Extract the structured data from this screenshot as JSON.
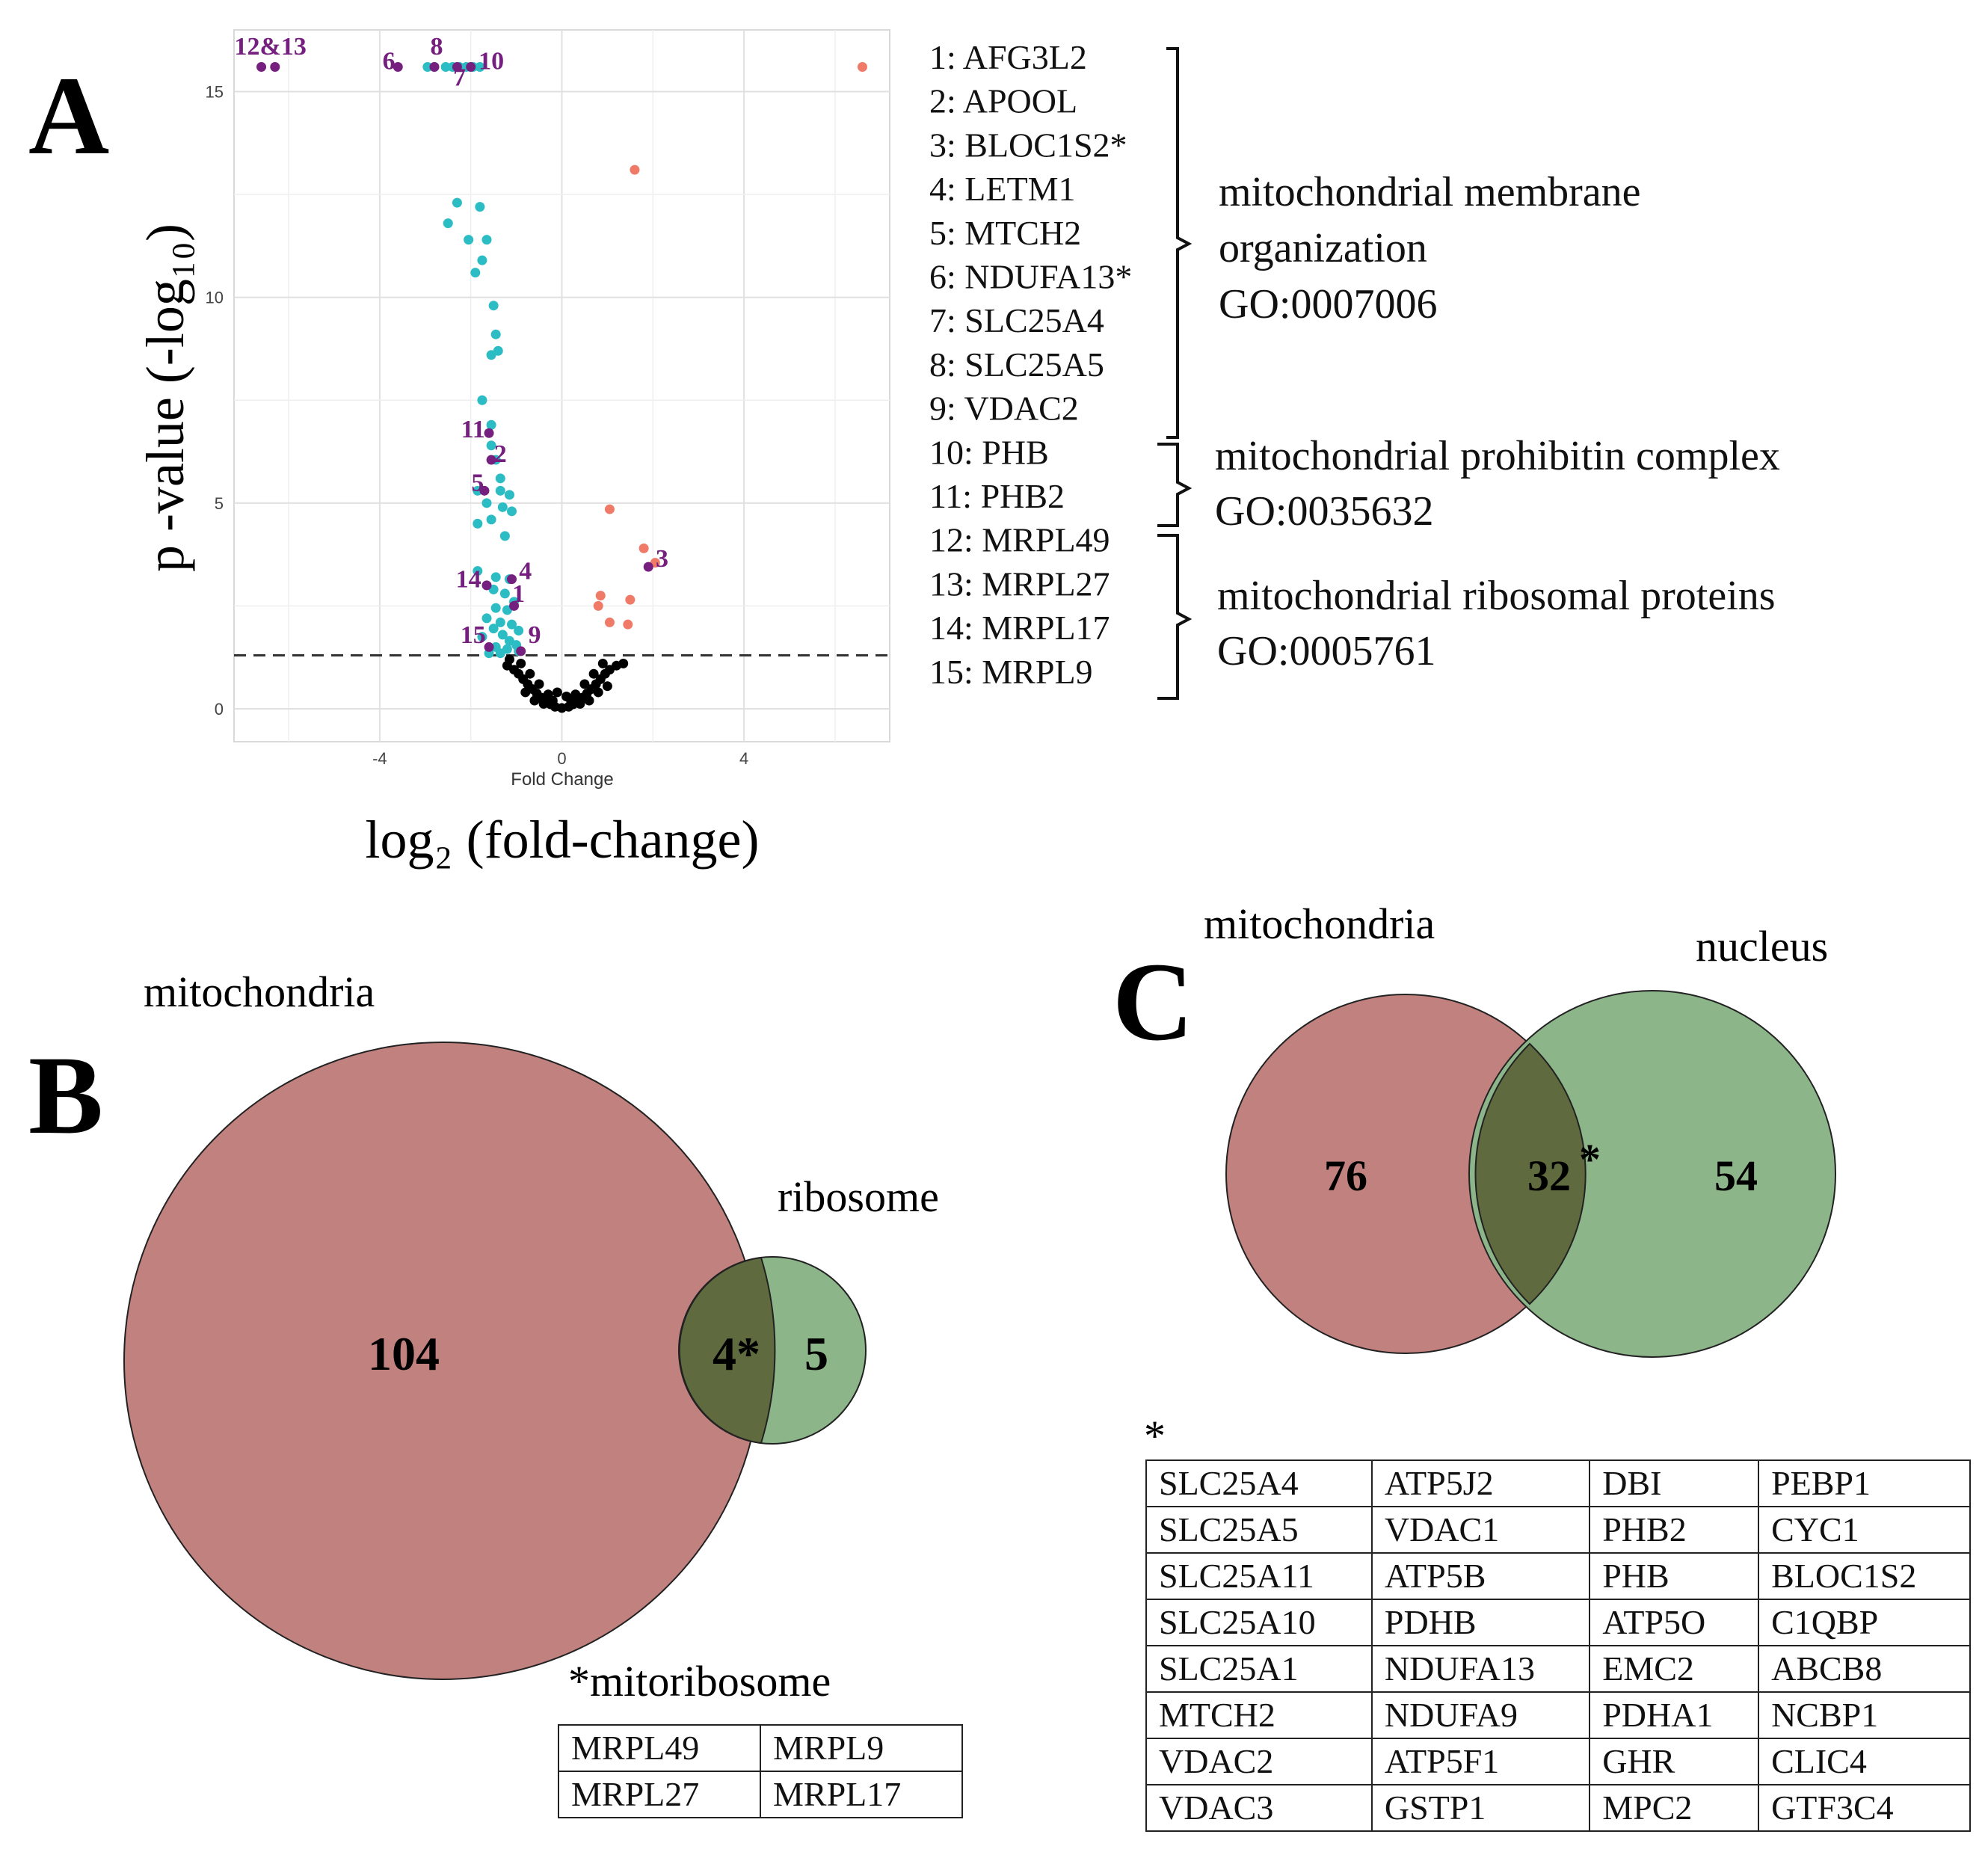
{
  "colors": {
    "up": "#f07a68",
    "down": "#2bbcc4",
    "ns": "#000000",
    "highlight": "#75207f",
    "venn_mito": "#c0817f",
    "venn_other": "#8db58a",
    "venn_overlap": "#5f6a3e"
  },
  "panelA": {
    "letter": "A",
    "chart_data": {
      "type": "scatter",
      "title": "",
      "xlabel_small": "Fold  Change",
      "xlabel": "log₂ (fold-change)",
      "ylabel": "p -value  (-log₁₀)",
      "xlim": [
        -7.2,
        7.2
      ],
      "ylim": [
        -0.8,
        16.5
      ],
      "x_ticks": [
        -4,
        0,
        4
      ],
      "y_ticks": [
        0,
        5,
        10,
        15
      ],
      "grid": true,
      "threshold_y": 1.3,
      "series": [
        {
          "name": "up",
          "color": "#f07a68",
          "points": [
            [
              6.6,
              15.6
            ],
            [
              1.6,
              13.1
            ],
            [
              1.05,
              4.85
            ],
            [
              1.8,
              3.9
            ],
            [
              2.05,
              3.55
            ],
            [
              1.5,
              2.65
            ],
            [
              0.85,
              2.75
            ],
            [
              0.8,
              2.5
            ],
            [
              1.05,
              2.1
            ],
            [
              1.45,
              2.05
            ]
          ]
        },
        {
          "name": "down",
          "color": "#2bbcc4",
          "points": [
            [
              -2.95,
              15.6
            ],
            [
              -2.8,
              15.6
            ],
            [
              -2.55,
              15.6
            ],
            [
              -2.4,
              15.6
            ],
            [
              -2.25,
              15.6
            ],
            [
              -2.1,
              15.6
            ],
            [
              -1.95,
              15.6
            ],
            [
              -1.8,
              15.6
            ],
            [
              -2.3,
              12.3
            ],
            [
              -2.5,
              11.8
            ],
            [
              -1.8,
              12.2
            ],
            [
              -2.05,
              11.4
            ],
            [
              -1.65,
              11.4
            ],
            [
              -1.75,
              10.9
            ],
            [
              -1.9,
              10.6
            ],
            [
              -1.5,
              9.8
            ],
            [
              -1.45,
              9.1
            ],
            [
              -1.4,
              8.7
            ],
            [
              -1.55,
              8.6
            ],
            [
              -1.75,
              7.5
            ],
            [
              -1.55,
              6.9
            ],
            [
              -1.55,
              6.4
            ],
            [
              -1.45,
              6.05
            ],
            [
              -1.35,
              5.6
            ],
            [
              -1.85,
              5.3
            ],
            [
              -1.35,
              5.3
            ],
            [
              -1.15,
              5.2
            ],
            [
              -1.65,
              5.0
            ],
            [
              -1.3,
              4.9
            ],
            [
              -1.1,
              4.8
            ],
            [
              -1.55,
              4.6
            ],
            [
              -1.85,
              4.5
            ],
            [
              -1.25,
              4.2
            ],
            [
              -1.85,
              3.35
            ],
            [
              -1.45,
              3.2
            ],
            [
              -1.15,
              3.15
            ],
            [
              -1.5,
              2.9
            ],
            [
              -1.25,
              2.8
            ],
            [
              -1.05,
              2.6
            ],
            [
              -1.45,
              2.45
            ],
            [
              -1.2,
              2.4
            ],
            [
              -1.65,
              2.2
            ],
            [
              -1.35,
              2.1
            ],
            [
              -1.1,
              2.05
            ],
            [
              -1.5,
              1.95
            ],
            [
              -0.95,
              1.9
            ],
            [
              -1.3,
              1.8
            ],
            [
              -1.75,
              1.75
            ],
            [
              -1.15,
              1.65
            ],
            [
              -1.0,
              1.55
            ],
            [
              -1.45,
              1.5
            ],
            [
              -1.2,
              1.45
            ],
            [
              -0.95,
              1.4
            ],
            [
              -1.6,
              1.35
            ],
            [
              -1.35,
              1.35
            ]
          ]
        },
        {
          "name": "highlight",
          "color": "#75207f",
          "points": [
            [
              -6.6,
              15.6
            ],
            [
              -6.3,
              15.6
            ],
            [
              -3.6,
              15.6
            ],
            [
              -2.8,
              15.6
            ],
            [
              -2.3,
              15.6
            ],
            [
              -2.0,
              15.6
            ],
            [
              -1.6,
              6.7
            ],
            [
              -1.55,
              6.05
            ],
            [
              -1.7,
              5.3
            ],
            [
              -1.65,
              3.0
            ],
            [
              -1.1,
              3.15
            ],
            [
              -1.05,
              2.5
            ],
            [
              -1.6,
              1.5
            ],
            [
              -0.9,
              1.4
            ],
            [
              1.9,
              3.45
            ]
          ]
        },
        {
          "name": "ns",
          "color": "#000000",
          "points": [
            [
              -1.05,
              0.95
            ],
            [
              -0.95,
              0.85
            ],
            [
              -0.85,
              0.72
            ],
            [
              -0.75,
              0.6
            ],
            [
              -0.65,
              0.48
            ],
            [
              -0.55,
              0.37
            ],
            [
              -0.45,
              0.27
            ],
            [
              -0.35,
              0.18
            ],
            [
              -0.25,
              0.11
            ],
            [
              -0.15,
              0.05
            ],
            [
              0.0,
              0.02
            ],
            [
              0.15,
              0.05
            ],
            [
              0.25,
              0.11
            ],
            [
              0.35,
              0.18
            ],
            [
              0.45,
              0.27
            ],
            [
              0.55,
              0.37
            ],
            [
              0.65,
              0.48
            ],
            [
              0.75,
              0.6
            ],
            [
              0.85,
              0.72
            ],
            [
              0.95,
              0.85
            ],
            [
              1.05,
              0.95
            ],
            [
              1.2,
              1.05
            ],
            [
              -1.2,
              1.05
            ],
            [
              -0.9,
              1.1
            ],
            [
              -1.15,
              1.2
            ],
            [
              -0.7,
              0.85
            ],
            [
              -0.5,
              0.6
            ],
            [
              -0.3,
              0.35
            ],
            [
              0.3,
              0.35
            ],
            [
              0.5,
              0.6
            ],
            [
              0.7,
              0.85
            ],
            [
              0.9,
              1.1
            ],
            [
              1.35,
              1.1
            ],
            [
              -0.6,
              0.2
            ],
            [
              -0.4,
              0.12
            ],
            [
              -0.2,
              0.2
            ],
            [
              0.2,
              0.2
            ],
            [
              0.4,
              0.12
            ],
            [
              0.6,
              0.2
            ],
            [
              -0.8,
              0.4
            ],
            [
              0.8,
              0.4
            ],
            [
              0.1,
              0.3
            ],
            [
              -0.1,
              0.4
            ],
            [
              1.0,
              0.55
            ]
          ]
        }
      ],
      "annotations": [
        {
          "text": "12&13",
          "x": -6.4,
          "y": 15.9
        },
        {
          "text": "6",
          "x": -3.8,
          "y": 15.55
        },
        {
          "text": "8",
          "x": -2.75,
          "y": 15.9
        },
        {
          "text": "10",
          "x": -1.55,
          "y": 15.55
        },
        {
          "text": "7",
          "x": -2.25,
          "y": 15.15
        },
        {
          "text": "11",
          "x": -1.95,
          "y": 6.6
        },
        {
          "text": "2",
          "x": -1.35,
          "y": 6.0
        },
        {
          "text": "5",
          "x": -1.85,
          "y": 5.3
        },
        {
          "text": "4",
          "x": -0.8,
          "y": 3.15
        },
        {
          "text": "14",
          "x": -2.05,
          "y": 2.95
        },
        {
          "text": "1",
          "x": -0.95,
          "y": 2.6
        },
        {
          "text": "3",
          "x": 2.2,
          "y": 3.45
        },
        {
          "text": "15",
          "x": -1.95,
          "y": 1.6
        },
        {
          "text": "9",
          "x": -0.6,
          "y": 1.6
        }
      ]
    },
    "genes": [
      "1:   AFG3L2",
      "2:   APOOL",
      "3:   BLOC1S2*",
      "4:   LETM1",
      "5:   MTCH2",
      "6:   NDUFA13*",
      "7:   SLC25A4",
      "8:   SLC25A5",
      "9:   VDAC2",
      "10: PHB",
      "11: PHB2",
      "12: MRPL49",
      "13: MRPL27",
      "14: MRPL17",
      "15: MRPL9"
    ],
    "groups": [
      {
        "lines": [
          "mitochondrial membrane",
          "organization",
          "GO:0007006"
        ]
      },
      {
        "lines": [
          "mitochondrial prohibitin complex",
          "GO:0035632"
        ]
      },
      {
        "lines": [
          "mitochondrial ribosomal proteins",
          "GO:0005761"
        ]
      }
    ]
  },
  "panelB": {
    "letter": "B",
    "label_left": "mitochondria",
    "label_right": "ribosome",
    "left_only": "104",
    "overlap": "4*",
    "right_only": "5",
    "footnote": "*mitoribosome",
    "table": [
      [
        "MRPL49",
        "MRPL9"
      ],
      [
        "MRPL27",
        "MRPL17"
      ]
    ]
  },
  "panelC": {
    "letter": "C",
    "label_left": "mitochondria",
    "label_right": "nucleus",
    "left_only": "76",
    "overlap": "32",
    "overlap_star": "*",
    "right_only": "54",
    "footnote": "*",
    "table": [
      [
        "SLC25A4",
        "ATP5J2",
        "DBI",
        "PEBP1"
      ],
      [
        "SLC25A5",
        "VDAC1",
        "PHB2",
        "CYC1"
      ],
      [
        "SLC25A11",
        "ATP5B",
        "PHB",
        "BLOC1S2"
      ],
      [
        "SLC25A10",
        "PDHB",
        "ATP5O",
        "C1QBP"
      ],
      [
        "SLC25A1",
        "NDUFA13",
        "EMC2",
        "ABCB8"
      ],
      [
        "MTCH2",
        "NDUFA9",
        "PDHA1",
        "NCBP1"
      ],
      [
        "VDAC2",
        "ATP5F1",
        "GHR",
        "CLIC4"
      ],
      [
        "VDAC3",
        "GSTP1",
        "MPC2",
        "GTF3C4"
      ]
    ]
  }
}
